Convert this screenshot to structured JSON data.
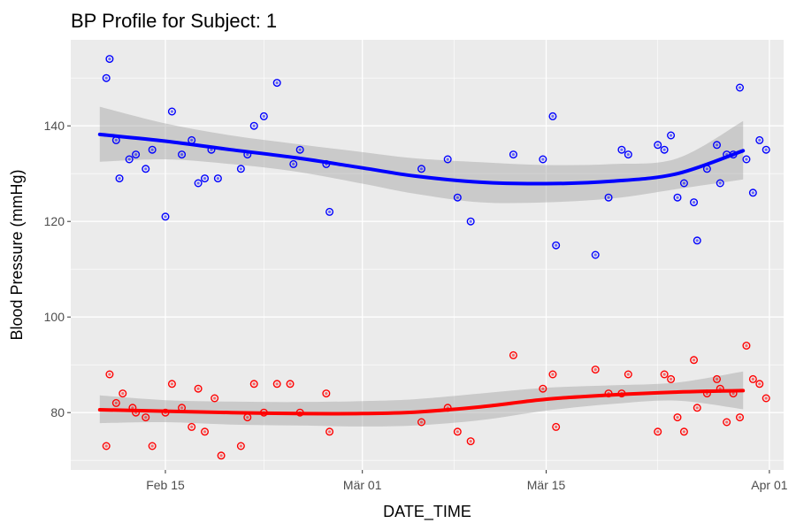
{
  "chart_data": {
    "type": "scatter",
    "title": "BP Profile for Subject: 1",
    "xlabel": "DATE_TIME",
    "ylabel": "Blood Pressure (mmHg)",
    "xlim": [
      "2024-02-07T19:00",
      "2024-04-02T02:00"
    ],
    "ylim": [
      68,
      158
    ],
    "x_ticks": [
      {
        "label": "Feb 15",
        "value": "2024-02-15"
      },
      {
        "label": "Mär 01",
        "value": "2024-03-01"
      },
      {
        "label": "Mär 15",
        "value": "2024-03-15"
      },
      {
        "label": "Apr 01",
        "value": "2024-04-01"
      }
    ],
    "y_ticks": [
      80,
      100,
      120,
      140
    ],
    "grid": true,
    "series": [
      {
        "color": "#0000ff",
        "smooth": [
          [
            "2024-02-10",
            138.2
          ],
          [
            "2024-02-15",
            136.8
          ],
          [
            "2024-02-20",
            135.0
          ],
          [
            "2024-02-25",
            133.3
          ],
          [
            "2024-03-01",
            131.2
          ],
          [
            "2024-03-05",
            129.5
          ],
          [
            "2024-03-10",
            128.2
          ],
          [
            "2024-03-15",
            127.9
          ],
          [
            "2024-03-20",
            128.4
          ],
          [
            "2024-03-25",
            130.0
          ],
          [
            "2024-03-30",
            134.8
          ]
        ],
        "band": [
          [
            "2024-02-10",
            132.5,
            144.0
          ],
          [
            "2024-02-15",
            133.0,
            140.5
          ],
          [
            "2024-02-20",
            132.0,
            138.0
          ],
          [
            "2024-02-25",
            130.4,
            136.2
          ],
          [
            "2024-03-01",
            127.9,
            134.5
          ],
          [
            "2024-03-05",
            125.8,
            133.2
          ],
          [
            "2024-03-10",
            124.0,
            132.4
          ],
          [
            "2024-03-15",
            124.0,
            131.8
          ],
          [
            "2024-03-20",
            124.8,
            132.0
          ],
          [
            "2024-03-25",
            126.8,
            133.2
          ],
          [
            "2024-03-30",
            128.8,
            141.0
          ]
        ],
        "points": [
          [
            "2024-02-10T12:00",
            150
          ],
          [
            "2024-02-10T18:00",
            154
          ],
          [
            "2024-02-11T06:00",
            137
          ],
          [
            "2024-02-11T12:00",
            129
          ],
          [
            "2024-02-12T06:00",
            133
          ],
          [
            "2024-02-12T18:00",
            134
          ],
          [
            "2024-02-13T12:00",
            131
          ],
          [
            "2024-02-14T00:00",
            135
          ],
          [
            "2024-02-15T00:00",
            121
          ],
          [
            "2024-02-15T12:00",
            143
          ],
          [
            "2024-02-16T06:00",
            134
          ],
          [
            "2024-02-17T00:00",
            137
          ],
          [
            "2024-02-17T12:00",
            128
          ],
          [
            "2024-02-18T00:00",
            129
          ],
          [
            "2024-02-18T12:00",
            135
          ],
          [
            "2024-02-19T00:00",
            129
          ],
          [
            "2024-02-20T18:00",
            131
          ],
          [
            "2024-02-21T06:00",
            134
          ],
          [
            "2024-02-21T18:00",
            140
          ],
          [
            "2024-02-22T12:00",
            142
          ],
          [
            "2024-02-23T12:00",
            149
          ],
          [
            "2024-02-24T18:00",
            132
          ],
          [
            "2024-02-25T06:00",
            135
          ],
          [
            "2024-02-27T06:00",
            132
          ],
          [
            "2024-02-27T12:00",
            122
          ],
          [
            "2024-03-05T12:00",
            131
          ],
          [
            "2024-03-07T12:00",
            133
          ],
          [
            "2024-03-08T06:00",
            125
          ],
          [
            "2024-03-09T06:00",
            120
          ],
          [
            "2024-03-12T12:00",
            134
          ],
          [
            "2024-03-14T18:00",
            133
          ],
          [
            "2024-03-15T12:00",
            142
          ],
          [
            "2024-03-15T18:00",
            115
          ],
          [
            "2024-03-18T18:00",
            113
          ],
          [
            "2024-03-19T18:00",
            125
          ],
          [
            "2024-03-20T18:00",
            135
          ],
          [
            "2024-03-21T06:00",
            134
          ],
          [
            "2024-03-23T12:00",
            136
          ],
          [
            "2024-03-24T00:00",
            135
          ],
          [
            "2024-03-24T12:00",
            138
          ],
          [
            "2024-03-25T00:00",
            125
          ],
          [
            "2024-03-25T12:00",
            128
          ],
          [
            "2024-03-26T06:00",
            124
          ],
          [
            "2024-03-26T12:00",
            116
          ],
          [
            "2024-03-27T06:00",
            131
          ],
          [
            "2024-03-28T00:00",
            136
          ],
          [
            "2024-03-28T06:00",
            128
          ],
          [
            "2024-03-28T18:00",
            134
          ],
          [
            "2024-03-29T06:00",
            134
          ],
          [
            "2024-03-29T18:00",
            148
          ],
          [
            "2024-03-30T06:00",
            133
          ],
          [
            "2024-03-30T18:00",
            126
          ],
          [
            "2024-03-31T06:00",
            137
          ],
          [
            "2024-03-31T18:00",
            135
          ]
        ]
      },
      {
        "color": "#ff0000",
        "smooth": [
          [
            "2024-02-10",
            80.6
          ],
          [
            "2024-02-15",
            80.3
          ],
          [
            "2024-02-20",
            80.0
          ],
          [
            "2024-02-25",
            79.8
          ],
          [
            "2024-03-01",
            79.8
          ],
          [
            "2024-03-05",
            80.1
          ],
          [
            "2024-03-10",
            81.2
          ],
          [
            "2024-03-15",
            82.8
          ],
          [
            "2024-03-20",
            83.7
          ],
          [
            "2024-03-25",
            84.3
          ],
          [
            "2024-03-30",
            84.6
          ]
        ],
        "band": [
          [
            "2024-02-10",
            77.8,
            83.6
          ],
          [
            "2024-02-15",
            78.0,
            82.6
          ],
          [
            "2024-02-20",
            77.5,
            82.3
          ],
          [
            "2024-02-25",
            77.3,
            82.2
          ],
          [
            "2024-03-01",
            77.1,
            82.4
          ],
          [
            "2024-03-05",
            77.3,
            82.8
          ],
          [
            "2024-03-10",
            78.4,
            84.0
          ],
          [
            "2024-03-15",
            80.4,
            85.2
          ],
          [
            "2024-03-20",
            81.8,
            85.7
          ],
          [
            "2024-03-25",
            82.5,
            86.3
          ],
          [
            "2024-03-30",
            80.7,
            88.6
          ]
        ],
        "points": [
          [
            "2024-02-10T12:00",
            73
          ],
          [
            "2024-02-10T18:00",
            88
          ],
          [
            "2024-02-11T06:00",
            82
          ],
          [
            "2024-02-11T18:00",
            84
          ],
          [
            "2024-02-12T12:00",
            81
          ],
          [
            "2024-02-12T18:00",
            80
          ],
          [
            "2024-02-13T12:00",
            79
          ],
          [
            "2024-02-14T00:00",
            73
          ],
          [
            "2024-02-15T00:00",
            80
          ],
          [
            "2024-02-15T12:00",
            86
          ],
          [
            "2024-02-16T06:00",
            81
          ],
          [
            "2024-02-17T00:00",
            77
          ],
          [
            "2024-02-17T12:00",
            85
          ],
          [
            "2024-02-18T00:00",
            76
          ],
          [
            "2024-02-18T18:00",
            83
          ],
          [
            "2024-02-19T06:00",
            71
          ],
          [
            "2024-02-20T18:00",
            73
          ],
          [
            "2024-02-21T06:00",
            79
          ],
          [
            "2024-02-21T18:00",
            86
          ],
          [
            "2024-02-22T12:00",
            80
          ],
          [
            "2024-02-23T12:00",
            86
          ],
          [
            "2024-02-24T12:00",
            86
          ],
          [
            "2024-02-25T06:00",
            80
          ],
          [
            "2024-02-27T06:00",
            84
          ],
          [
            "2024-02-27T12:00",
            76
          ],
          [
            "2024-03-05T12:00",
            78
          ],
          [
            "2024-03-07T12:00",
            81
          ],
          [
            "2024-03-08T06:00",
            76
          ],
          [
            "2024-03-09T06:00",
            74
          ],
          [
            "2024-03-12T12:00",
            92
          ],
          [
            "2024-03-14T18:00",
            85
          ],
          [
            "2024-03-15T12:00",
            88
          ],
          [
            "2024-03-15T18:00",
            77
          ],
          [
            "2024-03-18T18:00",
            89
          ],
          [
            "2024-03-19T18:00",
            84
          ],
          [
            "2024-03-20T18:00",
            84
          ],
          [
            "2024-03-21T06:00",
            88
          ],
          [
            "2024-03-23T12:00",
            76
          ],
          [
            "2024-03-24T00:00",
            88
          ],
          [
            "2024-03-24T12:00",
            87
          ],
          [
            "2024-03-25T00:00",
            79
          ],
          [
            "2024-03-25T12:00",
            76
          ],
          [
            "2024-03-26T06:00",
            91
          ],
          [
            "2024-03-26T12:00",
            81
          ],
          [
            "2024-03-27T06:00",
            84
          ],
          [
            "2024-03-28T00:00",
            87
          ],
          [
            "2024-03-28T06:00",
            85
          ],
          [
            "2024-03-28T18:00",
            78
          ],
          [
            "2024-03-29T06:00",
            84
          ],
          [
            "2024-03-29T18:00",
            79
          ],
          [
            "2024-03-30T06:00",
            94
          ],
          [
            "2024-03-30T18:00",
            87
          ],
          [
            "2024-03-31T06:00",
            86
          ],
          [
            "2024-03-31T18:00",
            83
          ]
        ]
      }
    ]
  }
}
